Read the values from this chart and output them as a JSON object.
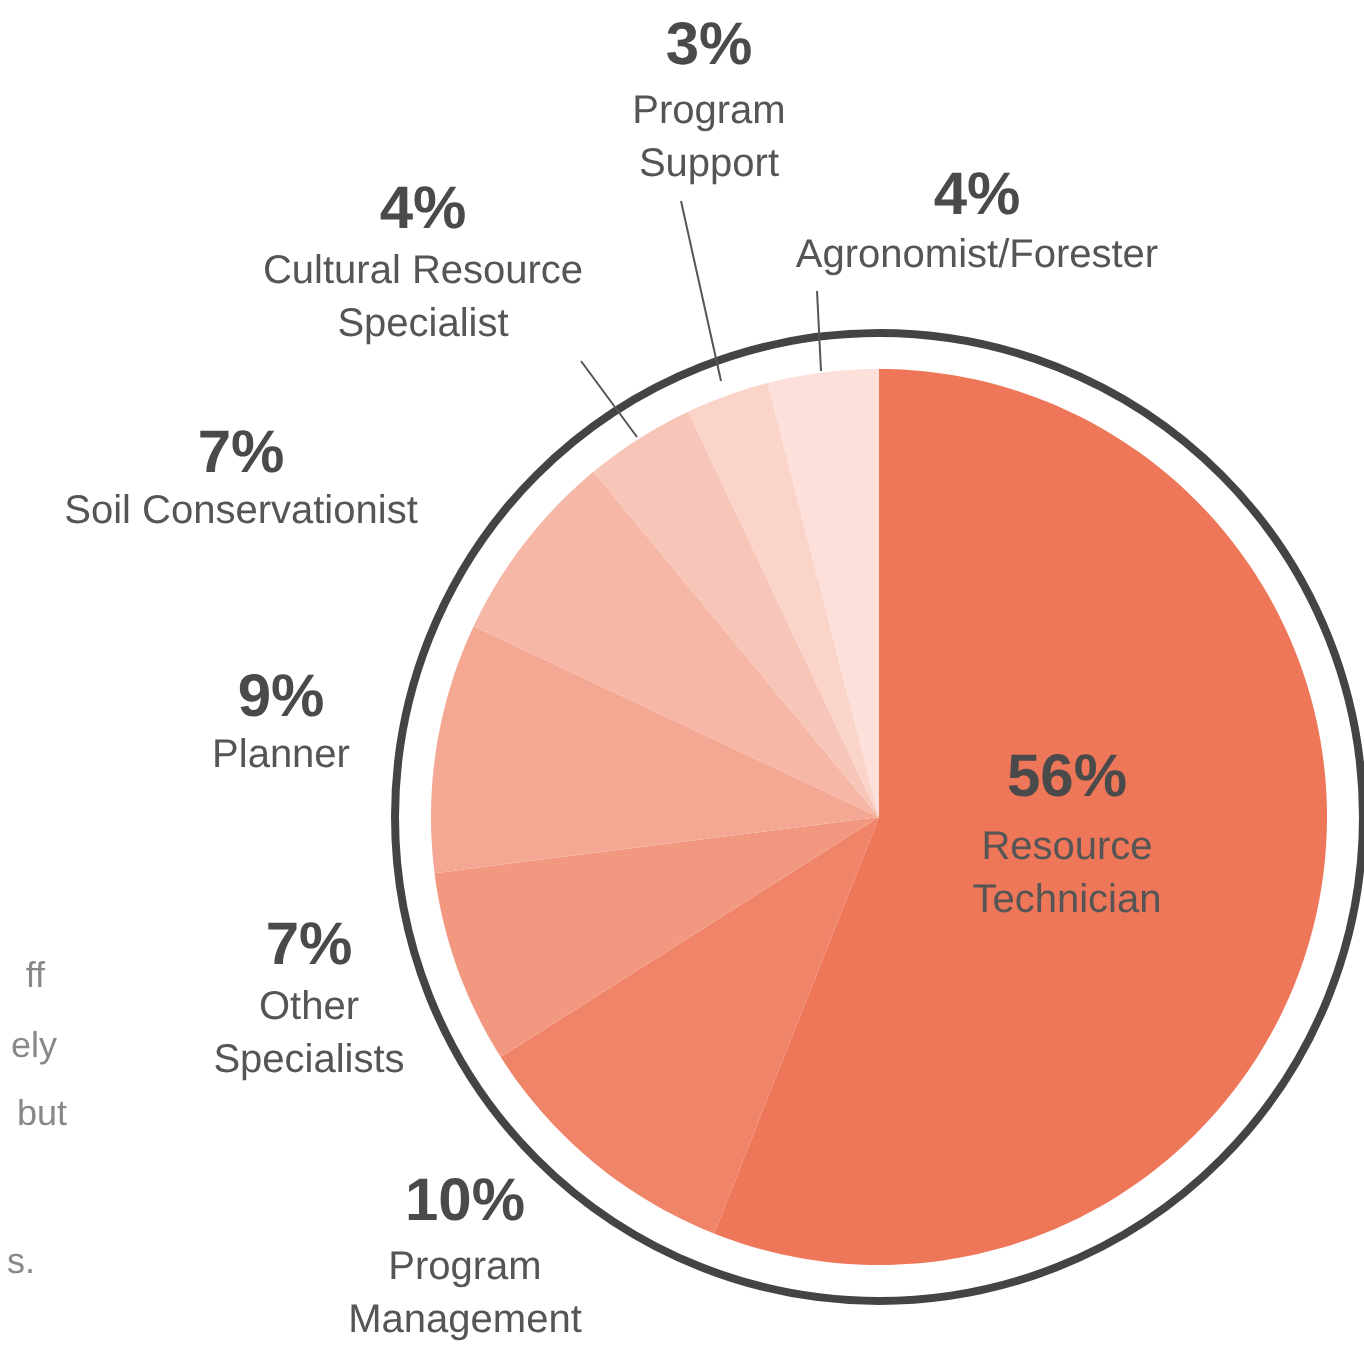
{
  "chart_data": {
    "type": "pie",
    "categories": [
      "Resource\nTechnician",
      "Program\nManagement",
      "Other\nSpecialists",
      "Planner",
      "Soil Conservationist",
      "Cultural Resource\nSpecialist",
      "Program\nSupport",
      "Agronomist/Forester"
    ],
    "values": [
      56,
      10,
      7,
      9,
      7,
      4,
      3,
      4
    ],
    "colors": [
      "#ee7659",
      "#f08469",
      "#f29880",
      "#f4a893",
      "#f6b7a7",
      "#f8c5b9",
      "#fad3c9",
      "#fce0d9"
    ],
    "value_labels": [
      "56%",
      "10%",
      "7%",
      "9%",
      "7%",
      "4%",
      "3%",
      "4%"
    ],
    "annotations": [
      "ff",
      "ely",
      "but",
      "s."
    ]
  }
}
